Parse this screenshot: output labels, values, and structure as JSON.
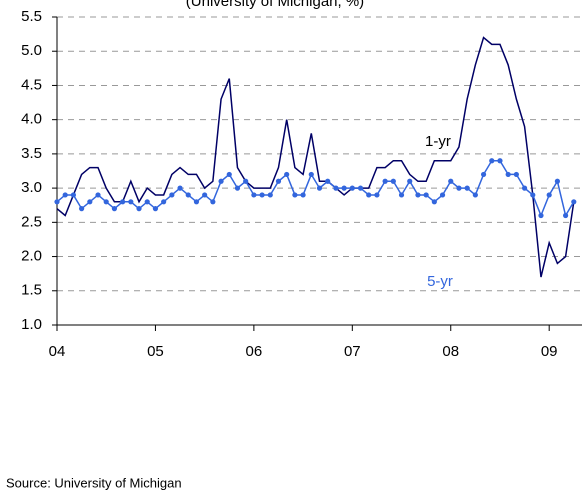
{
  "chart_data": {
    "type": "line",
    "subtitle": "(University of Michigan, %)",
    "source": "Source: University of Michigan",
    "x": [
      0,
      1,
      2,
      3,
      4,
      5,
      6,
      7,
      8,
      9,
      10,
      11,
      12,
      13,
      14,
      15,
      16,
      17,
      18,
      19,
      20,
      21,
      22,
      23,
      24,
      25,
      26,
      27,
      28,
      29,
      30,
      31,
      32,
      33,
      34,
      35,
      36,
      37,
      38,
      39,
      40,
      41,
      42,
      43,
      44,
      45,
      46,
      47,
      48,
      49,
      50,
      51,
      52,
      53,
      54,
      55,
      56,
      57,
      58,
      59,
      60,
      61,
      62,
      63
    ],
    "xlim": [
      0,
      64
    ],
    "xticks": [
      {
        "value": 0,
        "label": "04"
      },
      {
        "value": 12,
        "label": "05"
      },
      {
        "value": 24,
        "label": "06"
      },
      {
        "value": 36,
        "label": "07"
      },
      {
        "value": 48,
        "label": "08"
      },
      {
        "value": 60,
        "label": "09"
      }
    ],
    "ylim": [
      1,
      5.5
    ],
    "yticks": [
      {
        "value": 1,
        "label": "1.0"
      },
      1.5,
      {
        "value": 2,
        "label": "2.0"
      },
      2.5,
      {
        "value": 3,
        "label": "3.0"
      },
      3.5,
      {
        "value": 4,
        "label": "4.0"
      },
      4.5,
      {
        "value": 5,
        "label": "5.0"
      },
      5.5
    ],
    "grid": true,
    "series": [
      {
        "name": "1-yr",
        "color": "#000066",
        "markers": false,
        "values": [
          2.7,
          2.6,
          2.9,
          3.2,
          3.3,
          3.3,
          3.0,
          2.8,
          2.8,
          3.1,
          2.8,
          3.0,
          2.9,
          2.9,
          3.2,
          3.3,
          3.2,
          3.2,
          3.0,
          3.1,
          4.3,
          4.6,
          3.3,
          3.1,
          3.0,
          3.0,
          3.0,
          3.3,
          4.0,
          3.3,
          3.2,
          3.8,
          3.1,
          3.1,
          3.0,
          2.9,
          3.0,
          3.0,
          3.0,
          3.3,
          3.3,
          3.4,
          3.4,
          3.2,
          3.1,
          3.1,
          3.4,
          3.4,
          3.4,
          3.6,
          4.3,
          4.8,
          5.2,
          5.1,
          5.1,
          4.8,
          4.3,
          3.9,
          2.9,
          1.7,
          2.2,
          1.9,
          2.0,
          2.8
        ]
      },
      {
        "name": "5-yr",
        "color": "#3366dd",
        "markers": true,
        "values": [
          2.8,
          2.9,
          2.9,
          2.7,
          2.8,
          2.9,
          2.8,
          2.7,
          2.8,
          2.8,
          2.7,
          2.8,
          2.7,
          2.8,
          2.9,
          3.0,
          2.9,
          2.8,
          2.9,
          2.8,
          3.1,
          3.2,
          3.0,
          3.1,
          2.9,
          2.9,
          2.9,
          3.1,
          3.2,
          2.9,
          2.9,
          3.2,
          3.0,
          3.1,
          3.0,
          3.0,
          3.0,
          3.0,
          2.9,
          2.9,
          3.1,
          3.1,
          2.9,
          3.1,
          2.9,
          2.9,
          2.8,
          2.9,
          3.1,
          3.0,
          3.0,
          2.9,
          3.2,
          3.4,
          3.4,
          3.2,
          3.2,
          3.0,
          2.9,
          2.6,
          2.9,
          3.1,
          2.6,
          2.8
        ]
      }
    ]
  }
}
